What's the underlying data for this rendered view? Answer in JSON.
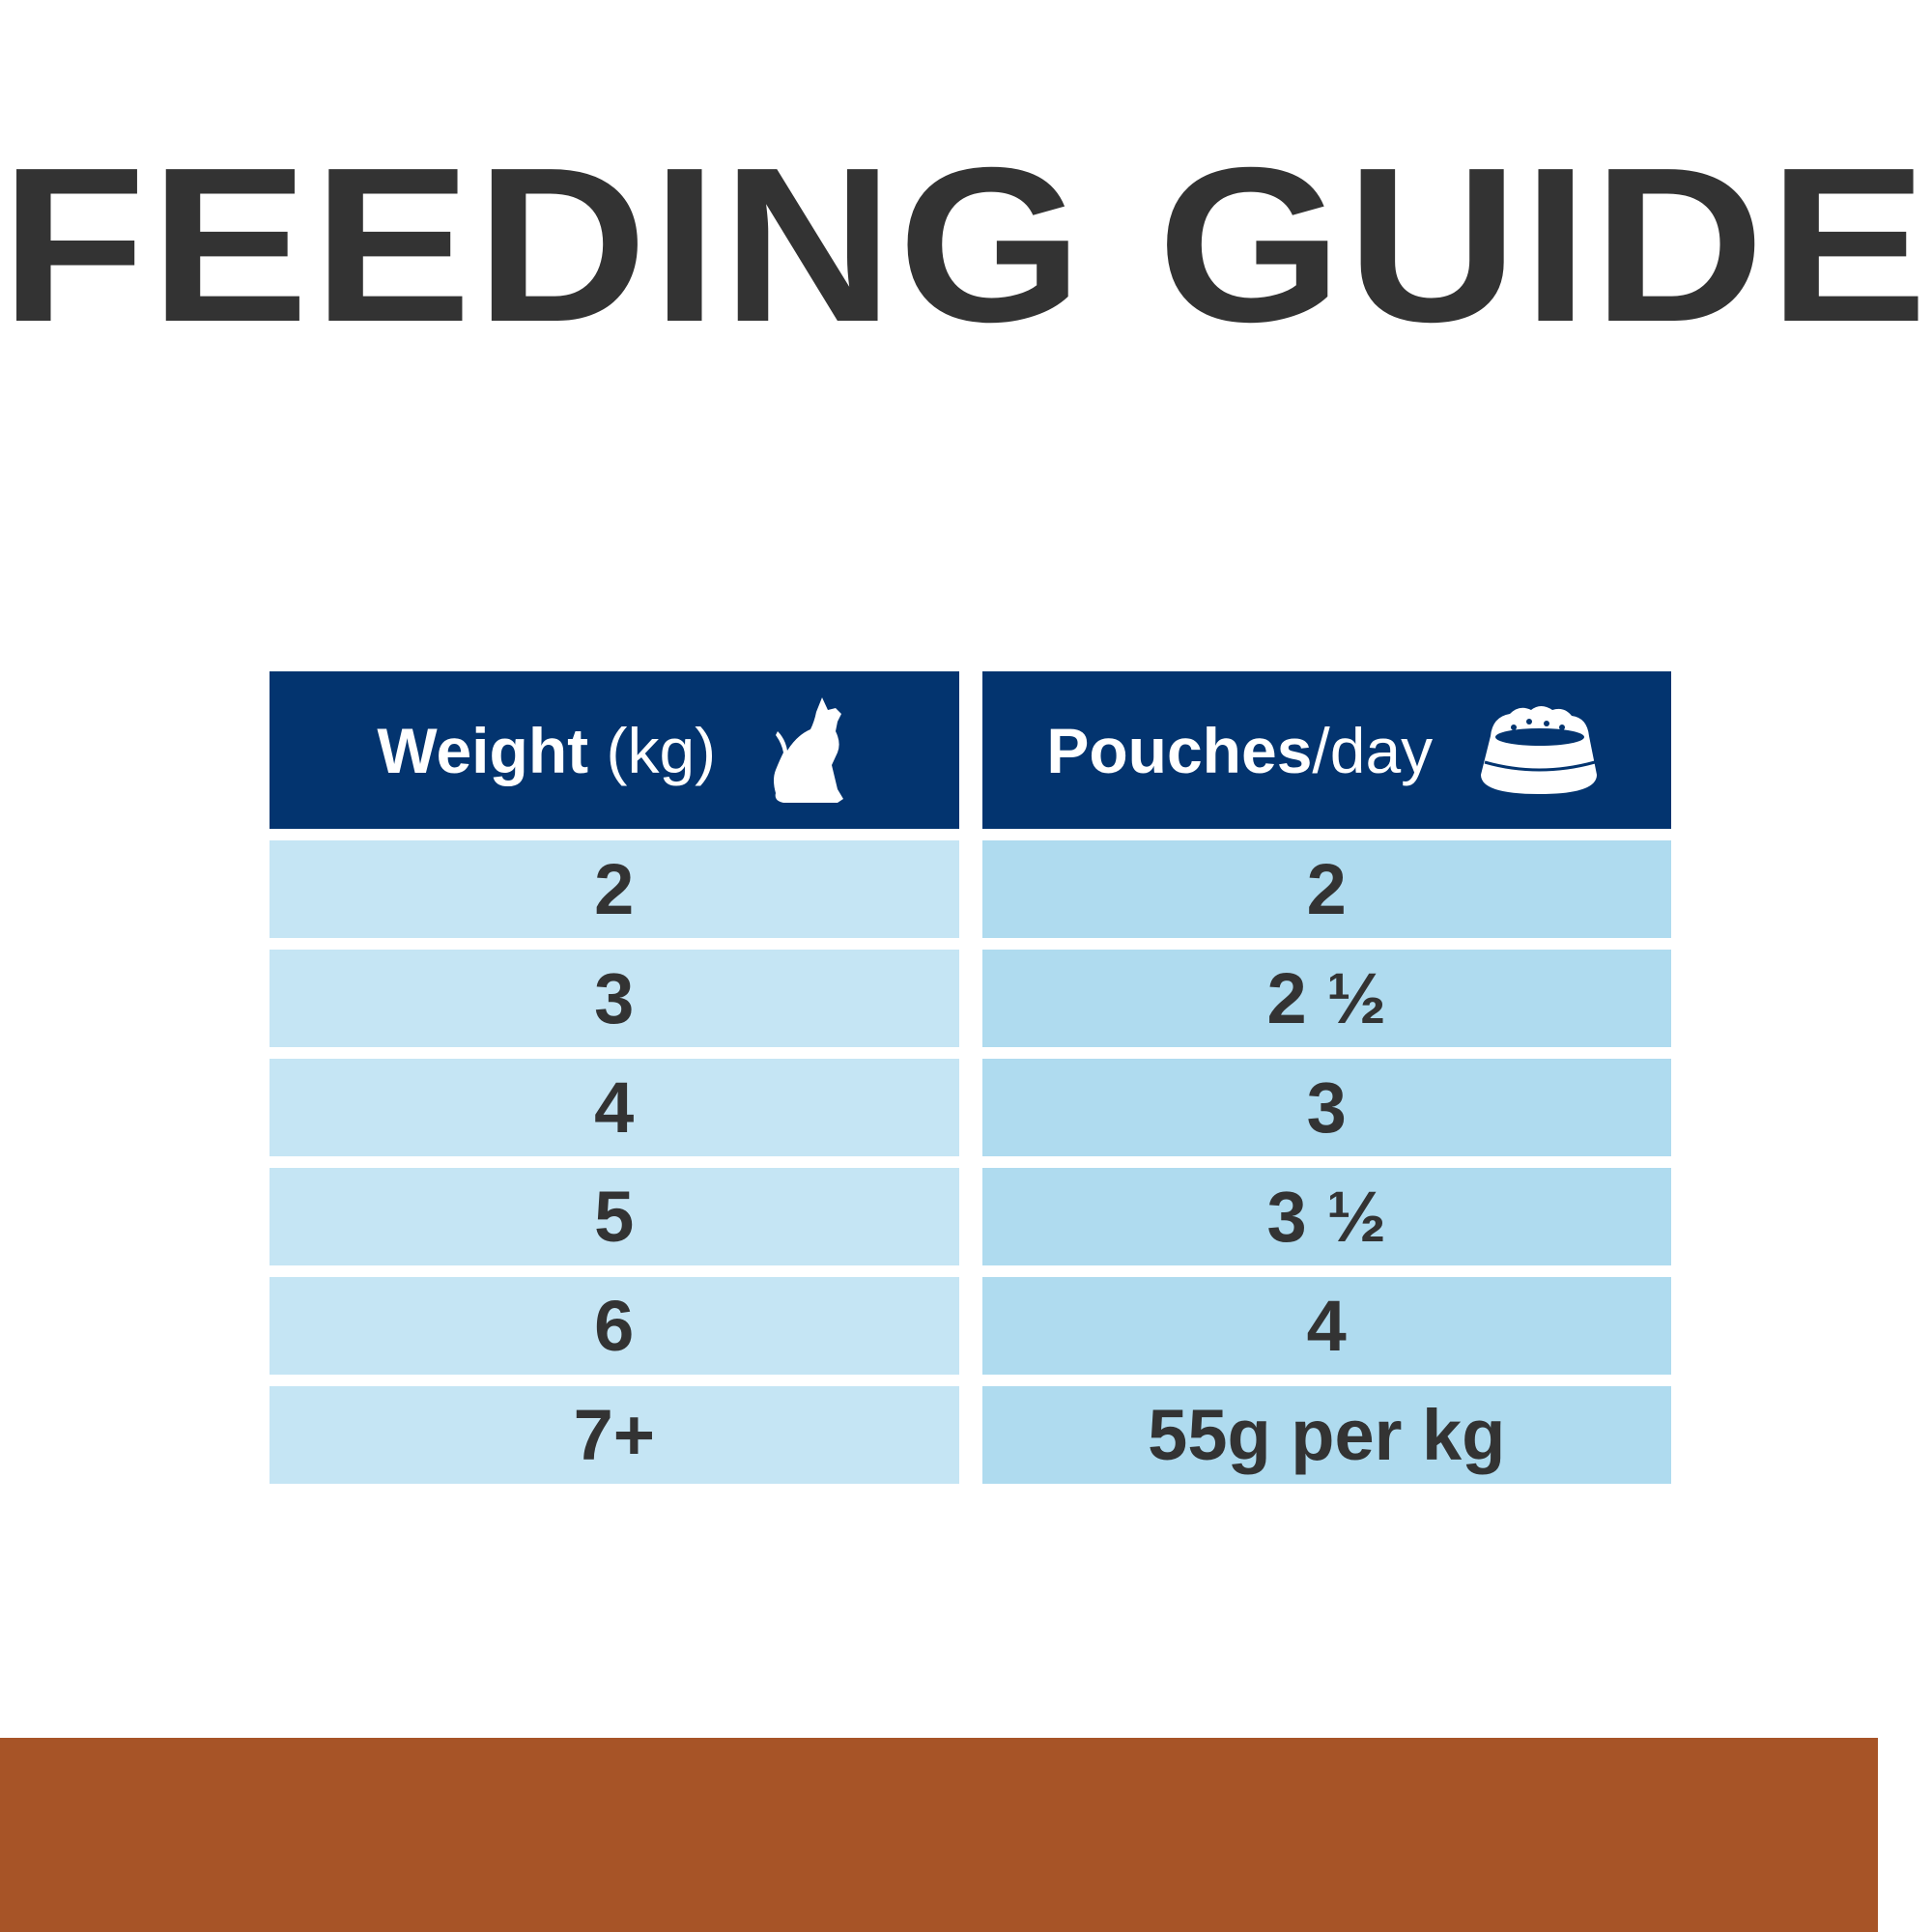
{
  "title": "FEEDING GUIDE",
  "table": {
    "headers": [
      {
        "bold": "Weight",
        "light": " (kg)",
        "icon": "cat-icon"
      },
      {
        "bold": "Pouches",
        "light": "/day",
        "icon": "food-bowl-icon"
      }
    ],
    "rows": [
      {
        "weight": "2",
        "pouches": "2"
      },
      {
        "weight": "3",
        "pouches": "2 ½"
      },
      {
        "weight": "4",
        "pouches": "3"
      },
      {
        "weight": "5",
        "pouches": "3 ½"
      },
      {
        "weight": "6",
        "pouches": "4"
      },
      {
        "weight": "7+",
        "pouches": "55g per kg"
      }
    ]
  },
  "colors": {
    "header": "#03346f",
    "cell_left": "#c5e5f4",
    "cell_right": "#afdbef",
    "text": "#333333",
    "footer_bar": "#a75427"
  }
}
